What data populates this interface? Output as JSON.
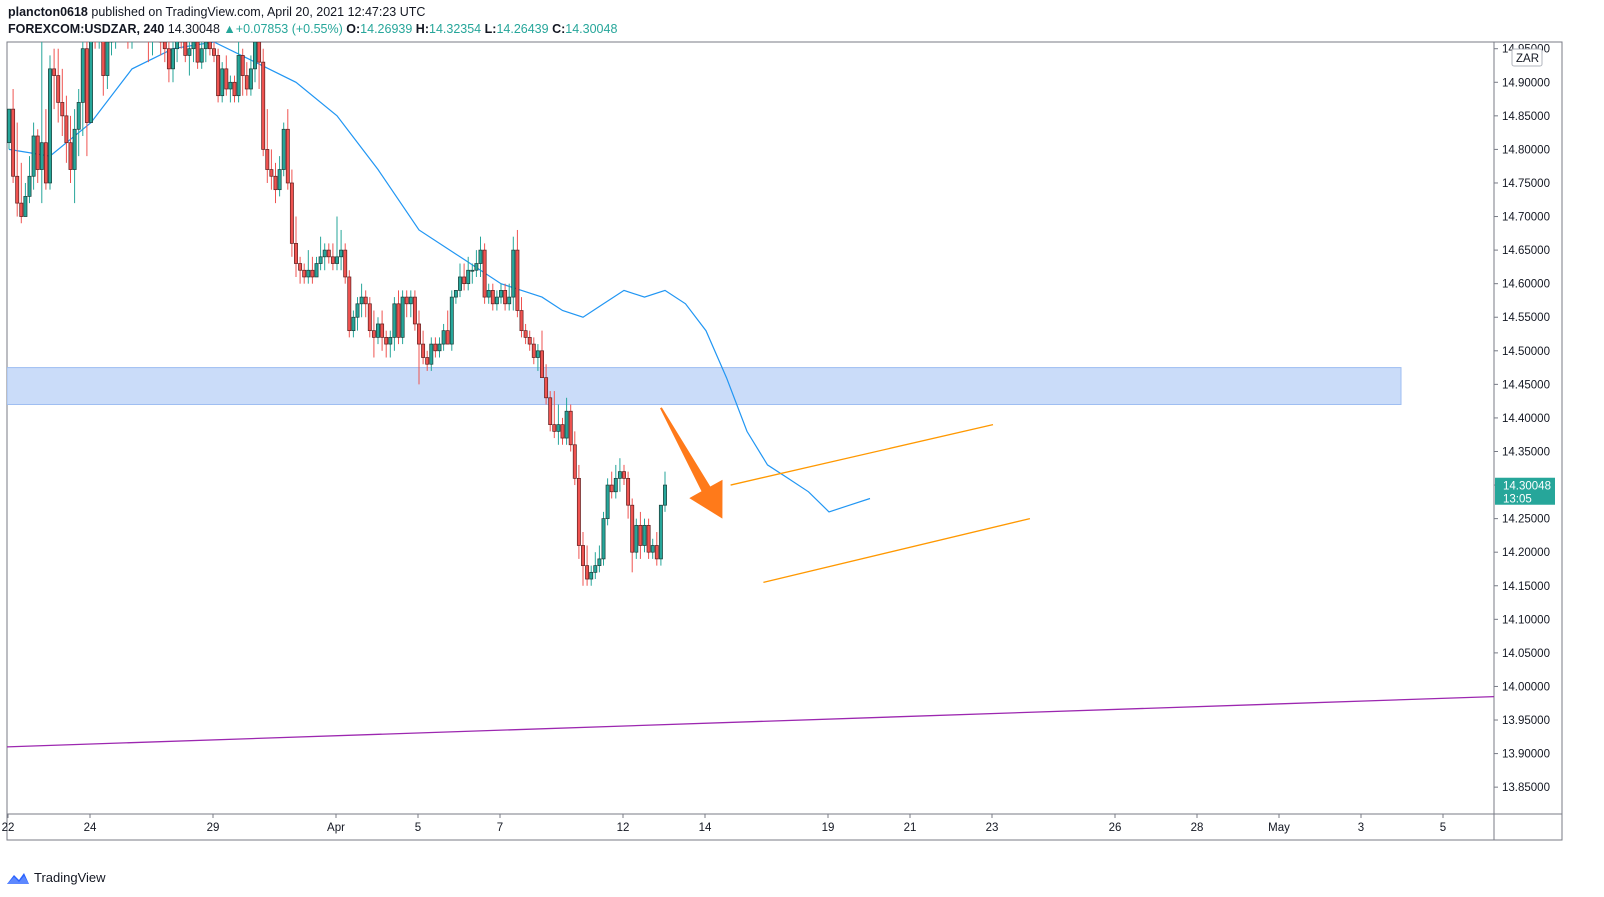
{
  "header": {
    "user": "plancton0618",
    "published_text": "published on TradingView.com, April 20, 2021 12:47:23 UTC",
    "symbol": "FOREXCOM:USDZAR, 240",
    "last": "14.30048",
    "change_prefix": "▲",
    "change": "+0.07853 (+0.55%)",
    "o_label": "O:",
    "o_value": "14.26939",
    "h_label": "H:",
    "h_value": "14.32354",
    "l_label": "L:",
    "l_value": "14.26439",
    "c_label": "C:",
    "c_value": "14.30048"
  },
  "footer": {
    "brand": "TradingView"
  },
  "colors": {
    "up": "#26a69a",
    "down": "#ef5350",
    "candle_border_up": "#1b3b36",
    "candle_border_down": "#5c1e1e",
    "ma": "#2196f3",
    "zone": "#b3cdf6",
    "channel": "#ff9800",
    "trendline": "#9c27b0",
    "arrow": "#ff7a1a",
    "price_tag": "#26a69a"
  },
  "chart_data": {
    "type": "candlestick",
    "price_scale_label": "ZAR",
    "y_ticks": [
      "14.95000",
      "14.90000",
      "14.85000",
      "14.80000",
      "14.75000",
      "14.70000",
      "14.65000",
      "14.60000",
      "14.55000",
      "14.50000",
      "14.45000",
      "14.40000",
      "14.35000",
      "14.30000",
      "14.25000",
      "14.20000",
      "14.15000",
      "14.10000",
      "14.05000",
      "14.00000",
      "13.95000",
      "13.90000",
      "13.85000"
    ],
    "y_tick_values": [
      14.95,
      14.9,
      14.85,
      14.8,
      14.75,
      14.7,
      14.65,
      14.6,
      14.55,
      14.5,
      14.45,
      14.4,
      14.35,
      14.3,
      14.25,
      14.2,
      14.15,
      14.1,
      14.05,
      14.0,
      13.95,
      13.9,
      13.85
    ],
    "ylim": [
      13.81,
      14.96
    ],
    "x_ticks": [
      "22",
      "24",
      "29",
      "Apr",
      "5",
      "7",
      "12",
      "14",
      "19",
      "21",
      "23",
      "26",
      "28",
      "May",
      "3",
      "5"
    ],
    "x_tick_bar_index": [
      0,
      20,
      50,
      80,
      100,
      120,
      150,
      170,
      200,
      220,
      240,
      270,
      290,
      310,
      330,
      350
    ],
    "current_price": "14.30048",
    "countdown": "13:05",
    "candles": [
      [
        14.81,
        14.86,
        14.8,
        14.86
      ],
      [
        14.86,
        14.89,
        14.75,
        14.76
      ],
      [
        14.76,
        14.84,
        14.7,
        14.72
      ],
      [
        14.72,
        14.78,
        14.69,
        14.7
      ],
      [
        14.7,
        14.75,
        14.7,
        14.73
      ],
      [
        14.73,
        14.79,
        14.72,
        14.76
      ],
      [
        14.76,
        14.84,
        14.74,
        14.82
      ],
      [
        14.82,
        14.83,
        14.75,
        14.77
      ],
      [
        14.77,
        14.99,
        14.72,
        14.81
      ],
      [
        14.81,
        14.86,
        14.74,
        14.75
      ],
      [
        14.75,
        14.94,
        14.74,
        14.92
      ],
      [
        14.92,
        14.95,
        14.86,
        14.91
      ],
      [
        14.91,
        14.95,
        14.84,
        14.87
      ],
      [
        14.87,
        14.92,
        14.82,
        14.85
      ],
      [
        14.85,
        14.88,
        14.78,
        14.81
      ],
      [
        14.81,
        14.85,
        14.75,
        14.77
      ],
      [
        14.77,
        14.86,
        14.72,
        14.83
      ],
      [
        14.83,
        14.89,
        14.79,
        14.87
      ],
      [
        14.87,
        14.98,
        14.82,
        14.95
      ],
      [
        14.95,
        15.05,
        14.79,
        14.84
      ],
      [
        14.84,
        15.06,
        14.84,
        15.06
      ],
      [
        15.06,
        15.08,
        14.95,
        14.97
      ],
      [
        14.97,
        14.99,
        14.95,
        14.99
      ],
      [
        14.99,
        15.0,
        14.88,
        14.91
      ],
      [
        14.91,
        14.97,
        14.89,
        14.96
      ],
      [
        14.96,
        15.02,
        14.94,
        14.98
      ],
      [
        14.98,
        15.01,
        14.95,
        14.99
      ],
      [
        14.99,
        15.02,
        14.96,
        15.0
      ],
      [
        15.0,
        15.03,
        14.96,
        15.01
      ],
      [
        15.01,
        15.03,
        14.95,
        14.97
      ],
      [
        14.97,
        15.01,
        14.95,
        14.99
      ],
      [
        14.99,
        15.03,
        14.97,
        15.02
      ],
      [
        15.02,
        15.04,
        14.98,
        15.0
      ],
      [
        15.0,
        15.02,
        14.96,
        14.98
      ],
      [
        14.98,
        15.0,
        14.93,
        14.97
      ],
      [
        14.97,
        15.0,
        14.94,
        14.99
      ],
      [
        14.99,
        15.02,
        14.96,
        15.0
      ],
      [
        15.0,
        15.01,
        14.94,
        14.96
      ],
      [
        14.96,
        14.98,
        14.93,
        14.95
      ],
      [
        14.95,
        14.97,
        14.9,
        14.92
      ],
      [
        14.92,
        14.96,
        14.9,
        14.95
      ],
      [
        14.95,
        14.98,
        14.93,
        14.97
      ],
      [
        14.97,
        14.99,
        14.95,
        14.96
      ],
      [
        14.96,
        14.98,
        14.93,
        14.94
      ],
      [
        14.94,
        14.96,
        14.91,
        14.95
      ],
      [
        14.95,
        14.97,
        14.93,
        14.96
      ],
      [
        14.96,
        14.97,
        14.92,
        14.93
      ],
      [
        14.93,
        14.96,
        14.92,
        14.95
      ],
      [
        14.95,
        14.97,
        14.93,
        14.96
      ],
      [
        14.96,
        14.97,
        14.94,
        14.95
      ],
      [
        14.95,
        14.97,
        14.93,
        14.94
      ],
      [
        14.94,
        14.95,
        14.87,
        14.88
      ],
      [
        14.88,
        14.93,
        14.87,
        14.92
      ],
      [
        14.92,
        14.94,
        14.88,
        14.89
      ],
      [
        14.89,
        14.91,
        14.87,
        14.9
      ],
      [
        14.9,
        14.91,
        14.87,
        14.88
      ],
      [
        14.88,
        14.96,
        14.87,
        14.94
      ],
      [
        14.94,
        14.95,
        14.88,
        14.91
      ],
      [
        14.91,
        14.93,
        14.88,
        14.89
      ],
      [
        14.89,
        14.94,
        14.88,
        14.92
      ],
      [
        14.92,
        14.97,
        14.9,
        14.96
      ],
      [
        14.96,
        14.96,
        14.89,
        14.93
      ],
      [
        14.93,
        14.95,
        14.79,
        14.8
      ],
      [
        14.8,
        14.86,
        14.75,
        14.77
      ],
      [
        14.77,
        14.8,
        14.74,
        14.76
      ],
      [
        14.76,
        14.78,
        14.72,
        14.74
      ],
      [
        14.74,
        14.79,
        14.73,
        14.77
      ],
      [
        14.77,
        14.84,
        14.76,
        14.83
      ],
      [
        14.83,
        14.86,
        14.74,
        14.75
      ],
      [
        14.75,
        14.77,
        14.64,
        14.66
      ],
      [
        14.66,
        14.7,
        14.61,
        14.63
      ],
      [
        14.63,
        14.64,
        14.6,
        14.62
      ],
      [
        14.62,
        14.63,
        14.6,
        14.61
      ],
      [
        14.61,
        14.65,
        14.6,
        14.62
      ],
      [
        14.62,
        14.64,
        14.6,
        14.61
      ],
      [
        14.61,
        14.64,
        14.61,
        14.63
      ],
      [
        14.63,
        14.67,
        14.62,
        14.64
      ],
      [
        14.64,
        14.66,
        14.62,
        14.65
      ],
      [
        14.65,
        14.66,
        14.63,
        14.64
      ],
      [
        14.64,
        14.66,
        14.62,
        14.63
      ],
      [
        14.63,
        14.7,
        14.62,
        14.64
      ],
      [
        14.64,
        14.68,
        14.62,
        14.65
      ],
      [
        14.65,
        14.66,
        14.6,
        14.61
      ],
      [
        14.61,
        14.62,
        14.52,
        14.53
      ],
      [
        14.53,
        14.56,
        14.52,
        14.55
      ],
      [
        14.55,
        14.58,
        14.53,
        14.57
      ],
      [
        14.57,
        14.6,
        14.55,
        14.58
      ],
      [
        14.58,
        14.59,
        14.55,
        14.57
      ],
      [
        14.57,
        14.58,
        14.52,
        14.53
      ],
      [
        14.53,
        14.56,
        14.49,
        14.52
      ],
      [
        14.52,
        14.55,
        14.51,
        14.54
      ],
      [
        14.54,
        14.56,
        14.5,
        14.52
      ],
      [
        14.52,
        14.53,
        14.49,
        14.51
      ],
      [
        14.51,
        14.53,
        14.49,
        14.52
      ],
      [
        14.52,
        14.58,
        14.5,
        14.57
      ],
      [
        14.57,
        14.59,
        14.51,
        14.52
      ],
      [
        14.52,
        14.59,
        14.51,
        14.58
      ],
      [
        14.58,
        14.59,
        14.55,
        14.57
      ],
      [
        14.57,
        14.59,
        14.55,
        14.58
      ],
      [
        14.58,
        14.59,
        14.53,
        14.54
      ],
      [
        14.54,
        14.56,
        14.45,
        14.51
      ],
      [
        14.51,
        14.53,
        14.48,
        14.49
      ],
      [
        14.49,
        14.5,
        14.47,
        14.48
      ],
      [
        14.48,
        14.52,
        14.47,
        14.51
      ],
      [
        14.51,
        14.52,
        14.49,
        14.5
      ],
      [
        14.5,
        14.52,
        14.49,
        14.51
      ],
      [
        14.51,
        14.54,
        14.5,
        14.53
      ],
      [
        14.53,
        14.56,
        14.51,
        14.51
      ],
      [
        14.51,
        14.59,
        14.5,
        14.58
      ],
      [
        14.58,
        14.59,
        14.57,
        14.59
      ],
      [
        14.59,
        14.63,
        14.58,
        14.61
      ],
      [
        14.61,
        14.63,
        14.59,
        14.6
      ],
      [
        14.6,
        14.64,
        14.59,
        14.62
      ],
      [
        14.62,
        14.63,
        14.6,
        14.62
      ],
      [
        14.62,
        14.65,
        14.61,
        14.63
      ],
      [
        14.63,
        14.67,
        14.61,
        14.65
      ],
      [
        14.65,
        14.66,
        14.57,
        14.58
      ],
      [
        14.58,
        14.6,
        14.57,
        14.59
      ],
      [
        14.59,
        14.6,
        14.56,
        14.57
      ],
      [
        14.57,
        14.59,
        14.56,
        14.58
      ],
      [
        14.58,
        14.6,
        14.57,
        14.59
      ],
      [
        14.59,
        14.6,
        14.56,
        14.57
      ],
      [
        14.57,
        14.6,
        14.56,
        14.58
      ],
      [
        14.58,
        14.67,
        14.56,
        14.65
      ],
      [
        14.65,
        14.68,
        14.55,
        14.56
      ],
      [
        14.56,
        14.58,
        14.52,
        14.53
      ],
      [
        14.53,
        14.54,
        14.51,
        14.52
      ],
      [
        14.52,
        14.53,
        14.5,
        14.51
      ],
      [
        14.51,
        14.52,
        14.48,
        14.49
      ],
      [
        14.49,
        14.51,
        14.47,
        14.5
      ],
      [
        14.5,
        14.53,
        14.46,
        14.46
      ],
      [
        14.46,
        14.48,
        14.42,
        14.43
      ],
      [
        14.43,
        14.44,
        14.38,
        14.39
      ],
      [
        14.39,
        14.44,
        14.37,
        14.38
      ],
      [
        14.38,
        14.42,
        14.36,
        14.39
      ],
      [
        14.39,
        14.4,
        14.36,
        14.37
      ],
      [
        14.37,
        14.43,
        14.36,
        14.41
      ],
      [
        14.41,
        14.42,
        14.35,
        14.36
      ],
      [
        14.36,
        14.38,
        14.3,
        14.31
      ],
      [
        14.31,
        14.33,
        14.19,
        14.21
      ],
      [
        14.21,
        14.23,
        14.15,
        14.18
      ],
      [
        14.18,
        14.21,
        14.15,
        14.16
      ],
      [
        14.16,
        14.18,
        14.15,
        14.17
      ],
      [
        14.17,
        14.2,
        14.16,
        14.18
      ],
      [
        14.18,
        14.21,
        14.17,
        14.19
      ],
      [
        14.19,
        14.26,
        14.18,
        14.25
      ],
      [
        14.25,
        14.31,
        14.24,
        14.3
      ],
      [
        14.3,
        14.32,
        14.28,
        14.29
      ],
      [
        14.29,
        14.33,
        14.28,
        14.31
      ],
      [
        14.31,
        14.34,
        14.29,
        14.32
      ],
      [
        14.32,
        14.33,
        14.3,
        14.31
      ],
      [
        14.31,
        14.32,
        14.25,
        14.27
      ],
      [
        14.27,
        14.28,
        14.17,
        14.2
      ],
      [
        14.2,
        14.25,
        14.19,
        14.24
      ],
      [
        14.24,
        14.26,
        14.19,
        14.21
      ],
      [
        14.21,
        14.25,
        14.2,
        14.24
      ],
      [
        14.24,
        14.25,
        14.19,
        14.2
      ],
      [
        14.2,
        14.22,
        14.19,
        14.21
      ],
      [
        14.21,
        14.23,
        14.18,
        14.19
      ],
      [
        14.19,
        14.27,
        14.18,
        14.27
      ],
      [
        14.27,
        14.32,
        14.26,
        14.3
      ]
    ],
    "ma_line": [
      [
        0,
        14.8
      ],
      [
        10,
        14.79
      ],
      [
        20,
        14.84
      ],
      [
        30,
        14.92
      ],
      [
        40,
        14.95
      ],
      [
        50,
        14.96
      ],
      [
        60,
        14.93
      ],
      [
        70,
        14.9
      ],
      [
        80,
        14.85
      ],
      [
        90,
        14.77
      ],
      [
        100,
        14.68
      ],
      [
        110,
        14.64
      ],
      [
        120,
        14.6
      ],
      [
        130,
        14.58
      ],
      [
        135,
        14.56
      ],
      [
        140,
        14.55
      ],
      [
        145,
        14.57
      ],
      [
        150,
        14.59
      ],
      [
        155,
        14.58
      ],
      [
        160,
        14.59
      ],
      [
        165,
        14.57
      ],
      [
        170,
        14.53
      ],
      [
        175,
        14.46
      ],
      [
        180,
        14.38
      ],
      [
        185,
        14.33
      ],
      [
        190,
        14.31
      ],
      [
        195,
        14.29
      ],
      [
        200,
        14.26
      ],
      [
        205,
        14.27
      ],
      [
        210,
        14.28
      ]
    ],
    "support_zone": {
      "from_bar": 0,
      "to_bar": 340,
      "low": 14.42,
      "high": 14.475
    },
    "channel_upper": {
      "x1": 176,
      "y1": 14.3,
      "x2": 240,
      "y2": 14.39
    },
    "channel_lower": {
      "x1": 184,
      "y1": 14.155,
      "x2": 249,
      "y2": 14.25
    },
    "trendline": {
      "x1": 0,
      "y1": 13.91,
      "x2": 363,
      "y2": 13.985
    },
    "arrow": {
      "x1": 159,
      "y1": 14.415,
      "x2": 174,
      "y2": 14.25
    }
  }
}
